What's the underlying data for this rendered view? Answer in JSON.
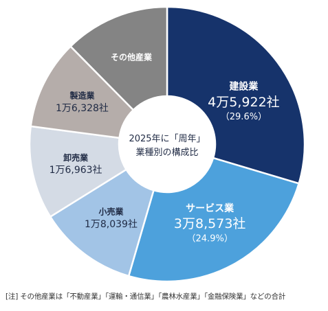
{
  "chart_data": {
    "type": "pie",
    "center_title_lines": [
      "2025年に「周年」",
      "業種別の構成比"
    ],
    "slices": [
      {
        "label": "建設業",
        "value_text": "4万5,922社",
        "value": 45922,
        "pct_text": "（29.6%）",
        "percent": 29.6,
        "color": "#16336b",
        "text_color": "#ffffff"
      },
      {
        "label": "サービス業",
        "value_text": "3万8,573社",
        "value": 38573,
        "pct_text": "（24.9%）",
        "percent": 24.9,
        "color": "#4da1dc",
        "text_color": "#ffffff"
      },
      {
        "label": "小売業",
        "value_text": "1万8,039社",
        "value": 18039,
        "pct_text": "",
        "color": "#a2c4e6",
        "text_color": "#1f2a44"
      },
      {
        "label": "卸売業",
        "value_text": "1万6,963社",
        "value": 16963,
        "pct_text": "",
        "color": "#d4dbe5",
        "text_color": "#1f2a44"
      },
      {
        "label": "製造業",
        "value_text": "1万6,328社",
        "value": 16328,
        "pct_text": "",
        "color": "#b5adaa",
        "text_color": "#1f2a44"
      },
      {
        "label": "その他産業",
        "value_text": "",
        "value": 19200,
        "pct_text": "",
        "color": "#848484",
        "text_color": "#ffffff"
      }
    ]
  },
  "footnote": "[注] その他産業は「不動産業」「運輸・通信業」「農林水産業」「金融保険業」などの合計"
}
